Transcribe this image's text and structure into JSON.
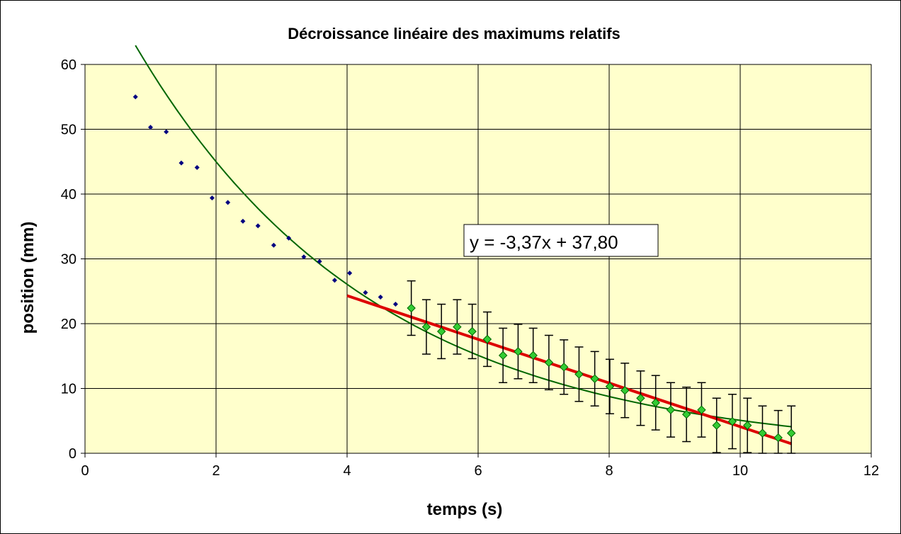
{
  "chart_data": {
    "type": "scatter",
    "title": "Décroissance linéaire des maximums relatifs",
    "xlabel": "temps  (s)",
    "ylabel": "position  (mm)",
    "xlim": [
      0,
      12
    ],
    "ylim": [
      0,
      60
    ],
    "x_ticks": [
      "0",
      "2",
      "4",
      "6",
      "8",
      "10",
      "12"
    ],
    "y_ticks": [
      "0",
      "10",
      "20",
      "30",
      "40",
      "50",
      "60"
    ],
    "grid": true,
    "legend": "none",
    "plot_background": "#FFFFCC",
    "series": [
      {
        "marker": "small-diamond",
        "color": "#000080",
        "x": [
          0.77,
          1.0,
          1.24,
          1.47,
          1.71,
          1.94,
          2.18,
          2.41,
          2.64,
          2.88,
          3.11,
          3.34,
          3.58,
          3.81,
          4.04,
          4.28,
          4.51,
          4.74
        ],
        "y": [
          55.0,
          50.3,
          49.6,
          44.8,
          44.1,
          39.4,
          38.7,
          35.8,
          35.1,
          32.1,
          33.2,
          30.3,
          29.6,
          26.7,
          27.8,
          24.8,
          24.1,
          23.0
        ]
      },
      {
        "marker": "diamond",
        "color": "#33CC33",
        "error_bar": 4.2,
        "x": [
          4.98,
          5.21,
          5.44,
          5.68,
          5.91,
          6.14,
          6.38,
          6.61,
          6.84,
          7.08,
          7.31,
          7.54,
          7.78,
          8.01,
          8.24,
          8.48,
          8.71,
          8.94,
          9.18,
          9.41,
          9.64,
          9.88,
          10.11,
          10.34,
          10.58,
          10.78
        ],
        "y": [
          22.4,
          19.5,
          18.8,
          19.5,
          18.8,
          17.6,
          15.1,
          15.7,
          15.1,
          14.0,
          13.3,
          12.2,
          11.5,
          10.3,
          9.7,
          8.5,
          7.8,
          6.7,
          6.0,
          6.7,
          4.3,
          4.9,
          4.3,
          3.1,
          2.4,
          3.1
        ]
      }
    ],
    "trendlines": [
      {
        "type": "exponential",
        "color": "#006600",
        "x_range": [
          0.77,
          10.78
        ]
      },
      {
        "type": "linear",
        "color": "#DD0000",
        "x_range": [
          4.0,
          10.78
        ],
        "slope": -3.37,
        "intercept": 37.8,
        "label": "y = -3,37x + 37,80"
      }
    ]
  }
}
